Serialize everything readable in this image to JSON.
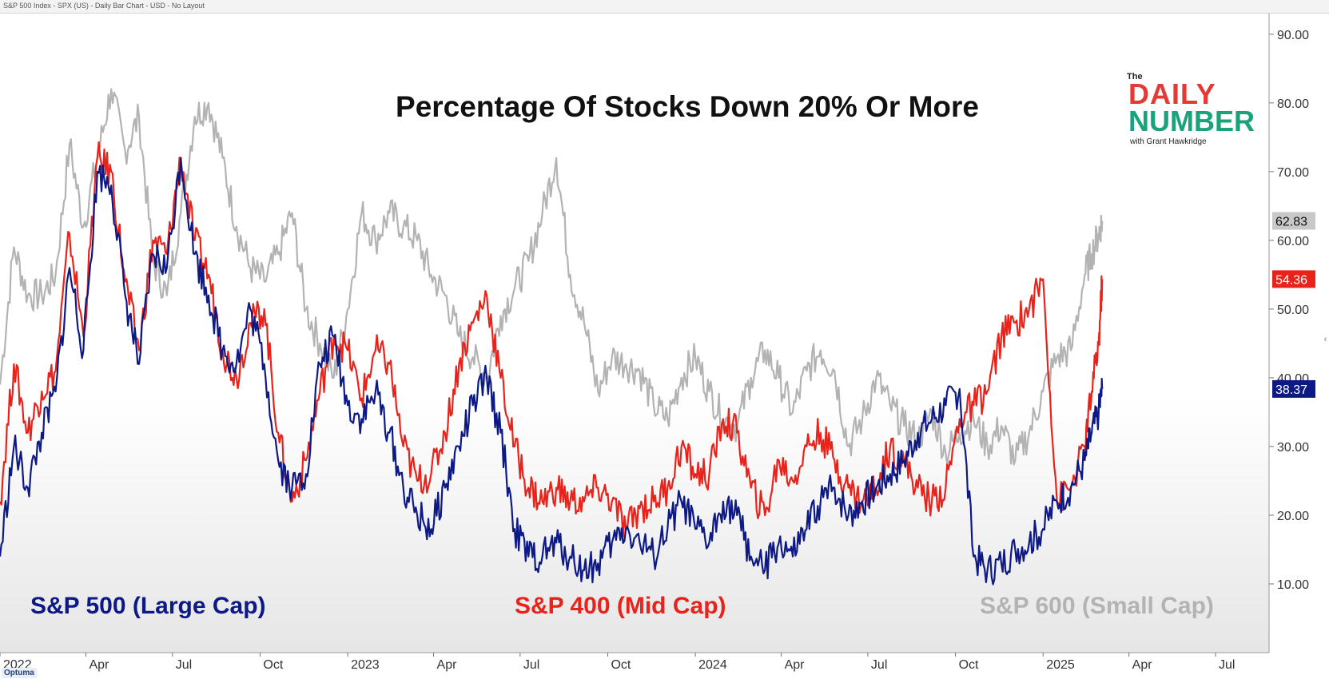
{
  "header": {
    "chart_info": "S&P 500 Index - SPX (US) - Daily Bar Chart - USD - No Layout"
  },
  "logo": {
    "line1": "The",
    "line2": "DAILY",
    "line3": "NUMBER",
    "line4": "with Grant Hawkridge"
  },
  "footer": {
    "brand": "Optuma"
  },
  "side_tab": "‹",
  "colors": {
    "large_cap": "#0d1a85",
    "mid_cap": "#e8231b",
    "small_cap": "#b3b3b3",
    "logo_red": "#e53935",
    "logo_green": "#1aa37a"
  },
  "chart_data": {
    "type": "line",
    "title": "Percentage Of Stocks Down 20% Or More",
    "xlabel": "",
    "ylabel": "",
    "xlim": [
      2022.0,
      2025.65
    ],
    "ylim": [
      0,
      93
    ],
    "x_tick_labels": [
      {
        "label": "2022",
        "x": 2022.0
      },
      {
        "label": "Apr",
        "x": 2022.247
      },
      {
        "label": "Jul",
        "x": 2022.496
      },
      {
        "label": "Oct",
        "x": 2022.748
      },
      {
        "label": "2023",
        "x": 2023.0
      },
      {
        "label": "Apr",
        "x": 2023.247
      },
      {
        "label": "Jul",
        "x": 2023.496
      },
      {
        "label": "Oct",
        "x": 2023.748
      },
      {
        "label": "2024",
        "x": 2024.0
      },
      {
        "label": "Apr",
        "x": 2024.247
      },
      {
        "label": "Jul",
        "x": 2024.496
      },
      {
        "label": "Oct",
        "x": 2024.748
      },
      {
        "label": "2025",
        "x": 2025.0
      },
      {
        "label": "Apr",
        "x": 2025.247
      },
      {
        "label": "Jul",
        "x": 2025.496
      }
    ],
    "y_ticks": [
      10,
      20,
      30,
      40,
      50,
      60,
      70,
      80,
      90
    ],
    "y_tick_labels": [
      "10.00",
      "20.00",
      "30.00",
      "40.00",
      "50.00",
      "60.00",
      "70.00",
      "80.00",
      "90.00"
    ],
    "last_value_labels": [
      {
        "series": "S&P 600 (Small Cap)",
        "value": 62.83,
        "text": "62.83"
      },
      {
        "series": "S&P 400 (Mid Cap)",
        "value": 54.36,
        "text": "54.36"
      },
      {
        "series": "S&P 500 (Large Cap)",
        "value": 38.37,
        "text": "38.37"
      }
    ],
    "x": [
      2022.0,
      2022.04,
      2022.08,
      2022.12,
      2022.16,
      2022.2,
      2022.24,
      2022.28,
      2022.32,
      2022.36,
      2022.4,
      2022.44,
      2022.48,
      2022.52,
      2022.56,
      2022.6,
      2022.64,
      2022.68,
      2022.72,
      2022.76,
      2022.8,
      2022.84,
      2022.88,
      2022.92,
      2022.96,
      2023.0,
      2023.04,
      2023.08,
      2023.12,
      2023.16,
      2023.2,
      2023.24,
      2023.28,
      2023.32,
      2023.36,
      2023.4,
      2023.44,
      2023.48,
      2023.52,
      2023.56,
      2023.6,
      2023.64,
      2023.68,
      2023.72,
      2023.76,
      2023.8,
      2023.84,
      2023.88,
      2023.92,
      2023.96,
      2024.0,
      2024.04,
      2024.08,
      2024.12,
      2024.16,
      2024.2,
      2024.24,
      2024.28,
      2024.32,
      2024.36,
      2024.4,
      2024.44,
      2024.48,
      2024.52,
      2024.56,
      2024.6,
      2024.64,
      2024.68,
      2024.72,
      2024.76,
      2024.8,
      2024.84,
      2024.88,
      2024.92,
      2024.96,
      2025.0,
      2025.04,
      2025.08,
      2025.12,
      2025.14,
      2025.16,
      2025.17
    ],
    "series": [
      {
        "name": "S&P 600 (Small Cap)",
        "color": "#b3b3b3",
        "values": [
          39,
          59,
          52,
          52,
          55,
          74,
          62,
          72,
          82,
          73,
          78,
          57,
          52,
          64,
          78,
          80,
          72,
          62,
          56,
          54,
          58,
          64,
          50,
          45,
          40,
          50,
          64,
          60,
          64,
          62,
          60,
          55,
          52,
          46,
          43,
          40,
          49,
          53,
          57,
          64,
          72,
          55,
          48,
          38,
          43,
          42,
          41,
          36,
          34,
          40,
          43,
          38,
          34,
          33,
          40,
          44,
          40,
          35,
          41,
          44,
          41,
          30,
          34,
          40,
          36,
          33,
          31,
          35,
          29,
          32,
          34,
          30,
          33,
          28,
          32,
          38,
          43,
          44,
          55,
          58,
          61,
          62.83
        ]
      },
      {
        "name": "S&P 400 (Mid Cap)",
        "color": "#e8231b",
        "values": [
          22,
          42,
          32,
          38,
          41,
          61,
          46,
          72,
          70,
          54,
          44,
          60,
          58,
          72,
          60,
          55,
          44,
          40,
          48,
          50,
          32,
          22,
          28,
          38,
          46,
          44,
          37,
          44,
          42,
          30,
          25,
          26,
          32,
          42,
          48,
          52,
          40,
          30,
          24,
          22,
          24,
          22,
          22,
          24,
          22,
          18,
          21,
          22,
          24,
          30,
          26,
          26,
          34,
          32,
          24,
          20,
          28,
          25,
          30,
          32,
          28,
          24,
          22,
          24,
          30,
          28,
          24,
          22,
          24,
          34,
          36,
          38,
          46,
          48,
          50,
          54.36,
          22,
          24,
          30,
          38,
          45,
          54.36
        ]
      },
      {
        "name": "S&P 500 (Large Cap)",
        "color": "#0d1a85",
        "values": [
          14,
          30,
          24,
          32,
          38,
          56,
          44,
          70,
          68,
          52,
          42,
          58,
          56,
          72,
          58,
          52,
          44,
          42,
          50,
          42,
          28,
          24,
          26,
          42,
          46,
          36,
          34,
          38,
          32,
          24,
          20,
          18,
          24,
          30,
          36,
          40,
          32,
          18,
          14,
          14,
          16,
          14,
          12,
          13,
          16,
          18,
          16,
          14,
          18,
          22,
          18,
          16,
          22,
          20,
          14,
          12,
          16,
          14,
          18,
          22,
          24,
          20,
          22,
          24,
          26,
          28,
          32,
          34,
          36,
          38.37,
          14,
          12,
          13,
          15,
          16,
          18,
          22,
          24,
          28,
          32,
          35,
          38.37
        ]
      }
    ],
    "legend": [
      {
        "text": "S&P 500 (Large Cap)",
        "color": "#0d1a85"
      },
      {
        "text": "S&P 400 (Mid Cap)",
        "color": "#e8231b"
      },
      {
        "text": "S&P 600 (Small Cap)",
        "color": "#b3b3b3"
      }
    ],
    "legend_position": "bottom"
  }
}
